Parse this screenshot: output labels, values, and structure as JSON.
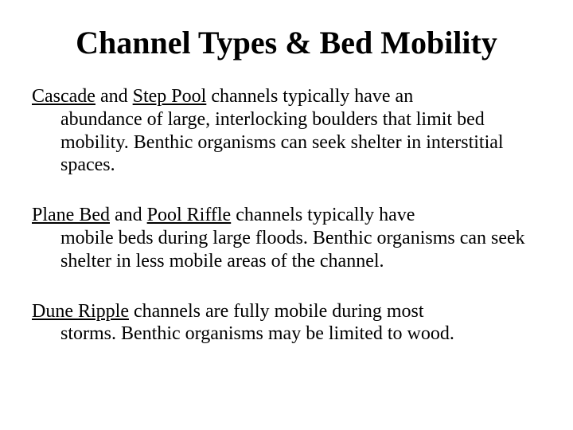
{
  "title": "Channel Types & Bed Mobility",
  "title_fontsize": 40,
  "body_fontsize": 24,
  "background_color": "#ffffff",
  "text_color": "#000000",
  "paragraphs": [
    {
      "line1_term1": "Cascade",
      "line1_mid": " and ",
      "line1_term2": "Step Pool",
      "line1_tail": " channels typically have an",
      "rest": "abundance of large, interlocking boulders that limit bed mobility.  Benthic organisms can seek shelter in interstitial spaces."
    },
    {
      "line1_term1": "Plane Bed",
      "line1_mid": " and ",
      "line1_term2": "Pool Riffle",
      "line1_tail": " channels typically have",
      "rest": "mobile beds during large floods.  Benthic organisms can seek shelter in less mobile areas of the channel."
    },
    {
      "line1_term1": "Dune Ripple",
      "line1_mid": "",
      "line1_term2": "",
      "line1_tail": " channels are fully mobile during most",
      "rest": "storms.  Benthic organisms may be limited to wood."
    }
  ]
}
